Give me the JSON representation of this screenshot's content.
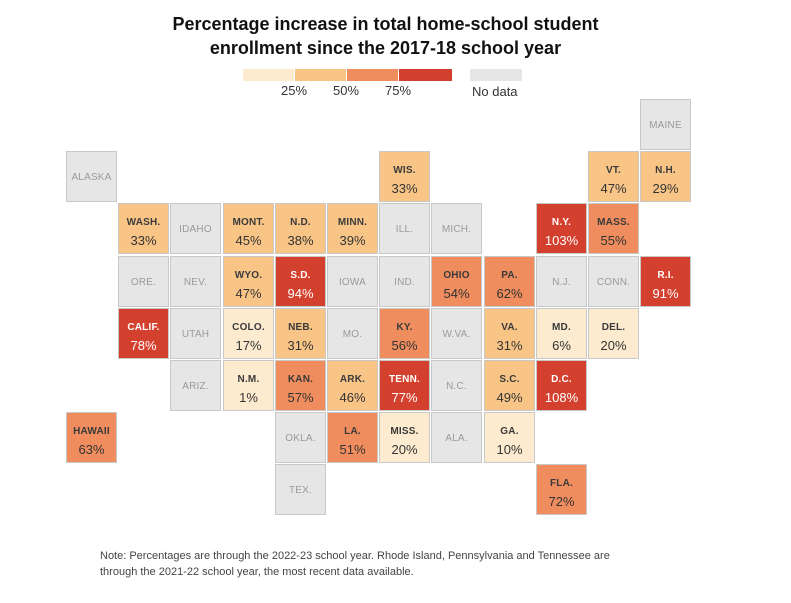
{
  "title_line1": "Percentage increase in total home-school student",
  "title_line2": "enrollment since the 2017-18 school year",
  "legend": {
    "bins": [
      {
        "color": "#fdebcf"
      },
      {
        "color": "#f8c587"
      },
      {
        "color": "#f08d5e"
      },
      {
        "color": "#d4402e"
      }
    ],
    "labels": [
      "25%",
      "50%",
      "75%"
    ],
    "no_data_label": "No data",
    "no_data_color": "#e6e6e6"
  },
  "colors": {
    "c1": "#fdebcf",
    "c2": "#f8c587",
    "c3": "#f08d5e",
    "c4": "#d4402e",
    "nodata": "#e6e6e6"
  },
  "chart_data": {
    "type": "tile-map",
    "unit": "%",
    "states": [
      {
        "abbr": "MAINE",
        "value": null
      },
      {
        "abbr": "ALASKA",
        "value": null
      },
      {
        "abbr": "WIS.",
        "value": 33
      },
      {
        "abbr": "VT.",
        "value": 47
      },
      {
        "abbr": "N.H.",
        "value": 29
      },
      {
        "abbr": "WASH.",
        "value": 33
      },
      {
        "abbr": "IDAHO",
        "value": null
      },
      {
        "abbr": "MONT.",
        "value": 45
      },
      {
        "abbr": "N.D.",
        "value": 38
      },
      {
        "abbr": "MINN.",
        "value": 39
      },
      {
        "abbr": "ILL.",
        "value": null
      },
      {
        "abbr": "MICH.",
        "value": null
      },
      {
        "abbr": "N.Y.",
        "value": 103
      },
      {
        "abbr": "MASS.",
        "value": 55
      },
      {
        "abbr": "ORE.",
        "value": null
      },
      {
        "abbr": "NEV.",
        "value": null
      },
      {
        "abbr": "WYO.",
        "value": 47
      },
      {
        "abbr": "S.D.",
        "value": 94
      },
      {
        "abbr": "IOWA",
        "value": null
      },
      {
        "abbr": "IND.",
        "value": null
      },
      {
        "abbr": "OHIO",
        "value": 54
      },
      {
        "abbr": "PA.",
        "value": 62
      },
      {
        "abbr": "N.J.",
        "value": null
      },
      {
        "abbr": "CONN.",
        "value": null
      },
      {
        "abbr": "R.I.",
        "value": 91
      },
      {
        "abbr": "CALIF.",
        "value": 78
      },
      {
        "abbr": "UTAH",
        "value": null
      },
      {
        "abbr": "COLO.",
        "value": 17
      },
      {
        "abbr": "NEB.",
        "value": 31
      },
      {
        "abbr": "MO.",
        "value": null
      },
      {
        "abbr": "KY.",
        "value": 56
      },
      {
        "abbr": "W.VA.",
        "value": null
      },
      {
        "abbr": "VA.",
        "value": 31
      },
      {
        "abbr": "MD.",
        "value": 6
      },
      {
        "abbr": "DEL.",
        "value": 20
      },
      {
        "abbr": "ARIZ.",
        "value": null
      },
      {
        "abbr": "N.M.",
        "value": 1
      },
      {
        "abbr": "KAN.",
        "value": 57
      },
      {
        "abbr": "ARK.",
        "value": 46
      },
      {
        "abbr": "TENN.",
        "value": 77
      },
      {
        "abbr": "N.C.",
        "value": null
      },
      {
        "abbr": "S.C.",
        "value": 49
      },
      {
        "abbr": "D.C.",
        "value": 108
      },
      {
        "abbr": "HAWAII",
        "value": 63
      },
      {
        "abbr": "OKLA.",
        "value": null
      },
      {
        "abbr": "LA.",
        "value": 51
      },
      {
        "abbr": "MISS.",
        "value": 20
      },
      {
        "abbr": "ALA.",
        "value": null
      },
      {
        "abbr": "GA.",
        "value": 10
      },
      {
        "abbr": "TEX.",
        "value": null
      },
      {
        "abbr": "FLA.",
        "value": 72
      }
    ]
  },
  "note_line1": "Note: Percentages are through the 2022-23 school year. Rhode Island, Pennsylvania and Tennessee are",
  "note_line2": "through the 2021-22 school year, the most recent data available."
}
